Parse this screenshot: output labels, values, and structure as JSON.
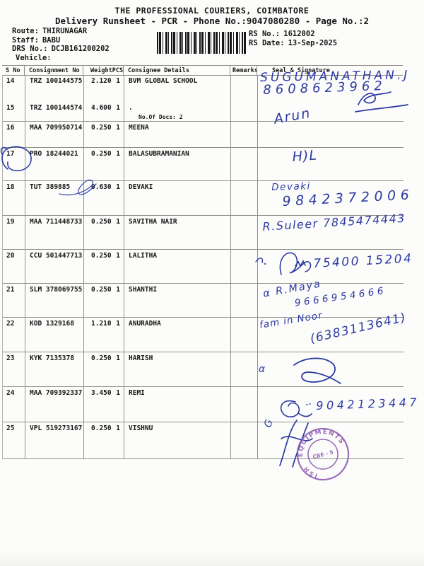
{
  "header": {
    "title": "THE PROFESSIONAL COURIERS, COIMBATORE",
    "subtitle": "Delivery Runsheet - PCR - Phone No.:9047080280 - Page No.:2"
  },
  "info": {
    "route_label": "Route:",
    "route": "THIRUNAGAR",
    "staff_label": "Staff:",
    "staff": "BABU",
    "drs_label": "DRS No.:",
    "drs": "DCJB161200202",
    "vehicle_label": "Vehicle:",
    "rs_no_label": "RS No.:",
    "rs_no": "1612002",
    "rs_date_label": "RS Date:",
    "rs_date": "13-Sep-2025"
  },
  "table": {
    "headers": {
      "sno": "S No",
      "consignment": "Consignment No",
      "weight": "Weight",
      "pcs": "PCS",
      "consignee": "Consignee Details",
      "remarks": "Remarks",
      "seal": "Seal & Signature"
    },
    "rows": [
      {
        "sno": "14",
        "consignment": "TRZ 100144575",
        "weight": "2.120",
        "pcs": "1",
        "consignee": "BVM GLOBAL SCHOOL",
        "remarks": ""
      },
      {
        "sno": "15",
        "consignment": "TRZ 100144574",
        "weight": "4.600",
        "pcs": "1",
        "consignee": ".",
        "note": "No.Of Docs: 2",
        "remarks": ""
      },
      {
        "sno": "16",
        "consignment": "MAA 709950714",
        "weight": "0.250",
        "pcs": "1",
        "consignee": "MEENA",
        "remarks": ""
      },
      {
        "sno": "17",
        "consignment": "PRO 18244021",
        "weight": "0.250",
        "pcs": "1",
        "consignee": "BALASUBRAMANIAN",
        "remarks": ""
      },
      {
        "sno": "18",
        "consignment": "TUT 389885",
        "weight": "0.630",
        "pcs": "1",
        "consignee": "DEVAKI",
        "remarks": ""
      },
      {
        "sno": "19",
        "consignment": "MAA 711448733",
        "weight": "0.250",
        "pcs": "1",
        "consignee": "SAVITHA NAIR",
        "remarks": ""
      },
      {
        "sno": "20",
        "consignment": "CCU 501447713",
        "weight": "0.250",
        "pcs": "1",
        "consignee": "LALITHA",
        "remarks": ""
      },
      {
        "sno": "21",
        "consignment": "SLM 378069755",
        "weight": "0.250",
        "pcs": "1",
        "consignee": "SHANTHI",
        "remarks": ""
      },
      {
        "sno": "22",
        "consignment": "KOD 1329168",
        "weight": "1.210",
        "pcs": "1",
        "consignee": "ANURADHA",
        "remarks": ""
      },
      {
        "sno": "23",
        "consignment": "KYK 7135378",
        "weight": "0.250",
        "pcs": "1",
        "consignee": "HARISH",
        "remarks": ""
      },
      {
        "sno": "24",
        "consignment": "MAA 709392337",
        "weight": "3.450",
        "pcs": "1",
        "consignee": "REMI",
        "remarks": ""
      },
      {
        "sno": "25",
        "consignment": "VPL 519273167",
        "weight": "0.250",
        "pcs": "1",
        "consignee": "VISHNU",
        "remarks": ""
      }
    ]
  },
  "ink": {
    "r14_name": "SUGUMANATHAN.J",
    "r14_phone": "8608623962",
    "r16": "Arun",
    "r17": "H)L",
    "r18_name": "Devaki",
    "r18_phone": "9842372006",
    "r19": "R.Suleer 7845474443",
    "r20_phone": "75400 15204",
    "r21_name": "α R.Maya",
    "r21_phone": "9666954666",
    "r22_text": "fam in Noor",
    "r22_phone": "(6383113641)",
    "r23": "α",
    "r24_phone": "9042123447",
    "r25": "G"
  },
  "stamp": {
    "ring_text": "EQUIPMENTS PVT",
    "ring_left": "ISH",
    "center_text": "CBE - 5"
  },
  "colors": {
    "ink_blue": "#2c3aa3",
    "stamp_purple": "#8a55b2",
    "text_black": "#161616"
  }
}
